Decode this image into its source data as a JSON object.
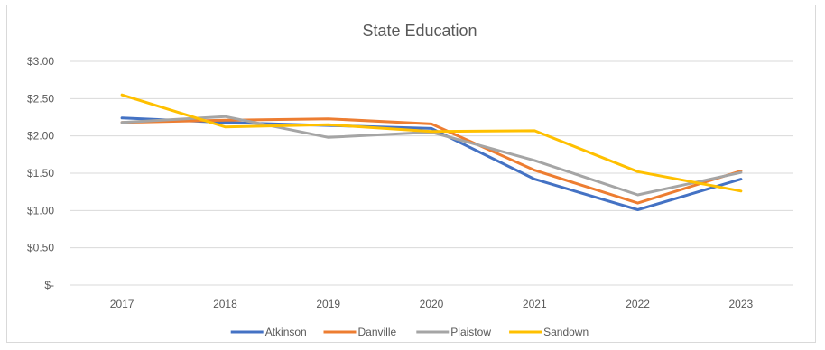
{
  "chart_data": {
    "type": "line",
    "title": "State Education",
    "categories": [
      "2017",
      "2018",
      "2019",
      "2020",
      "2021",
      "2022",
      "2023"
    ],
    "ylim": [
      0,
      3
    ],
    "yticks": [
      0,
      0.5,
      1,
      1.5,
      2,
      2.5,
      3
    ],
    "ytick_labels": [
      "$-",
      "$0.50",
      "$1.00",
      "$1.50",
      "$2.00",
      "$2.50",
      "$3.00"
    ],
    "grid": true,
    "legend_position": "bottom",
    "series": [
      {
        "name": "Atkinson",
        "color": "#4472c4",
        "values": [
          2.24,
          2.18,
          2.14,
          2.1,
          1.42,
          1.01,
          1.42
        ]
      },
      {
        "name": "Danville",
        "color": "#ed7d31",
        "values": [
          2.18,
          2.21,
          2.23,
          2.16,
          1.54,
          1.1,
          1.53
        ]
      },
      {
        "name": "Plaistow",
        "color": "#a5a5a5",
        "values": [
          2.18,
          2.26,
          1.98,
          2.05,
          1.67,
          1.21,
          1.51
        ]
      },
      {
        "name": "Sandown",
        "color": "#ffc000",
        "values": [
          2.55,
          2.12,
          2.15,
          2.06,
          2.07,
          1.52,
          1.26
        ]
      }
    ]
  }
}
